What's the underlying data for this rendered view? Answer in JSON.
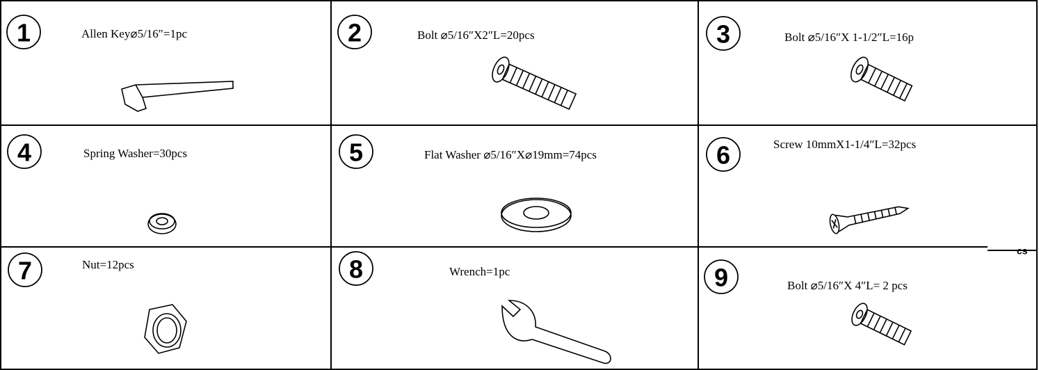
{
  "cells": [
    {
      "number": "1",
      "label": "Allen Key⌀5/16″=1pc"
    },
    {
      "number": "2",
      "label": "Bolt ⌀5/16″X2″L=20pcs"
    },
    {
      "number": "3",
      "label": "Bolt ⌀5/16″X 1-1/2″L=16p"
    },
    {
      "number": "4",
      "label": "Spring Washer=30pcs"
    },
    {
      "number": "5",
      "label": "Flat Washer ⌀5/16″X⌀19mm=74pcs"
    },
    {
      "number": "6",
      "label": "Screw 10mmX1-1/4″L=32pcs"
    },
    {
      "number": "7",
      "label": "Nut=12pcs"
    },
    {
      "number": "8",
      "label": "Wrench=1pc"
    },
    {
      "number": "9",
      "label": "Bolt ⌀5/16″X 4″L= 2 pcs"
    }
  ],
  "note": "cs"
}
